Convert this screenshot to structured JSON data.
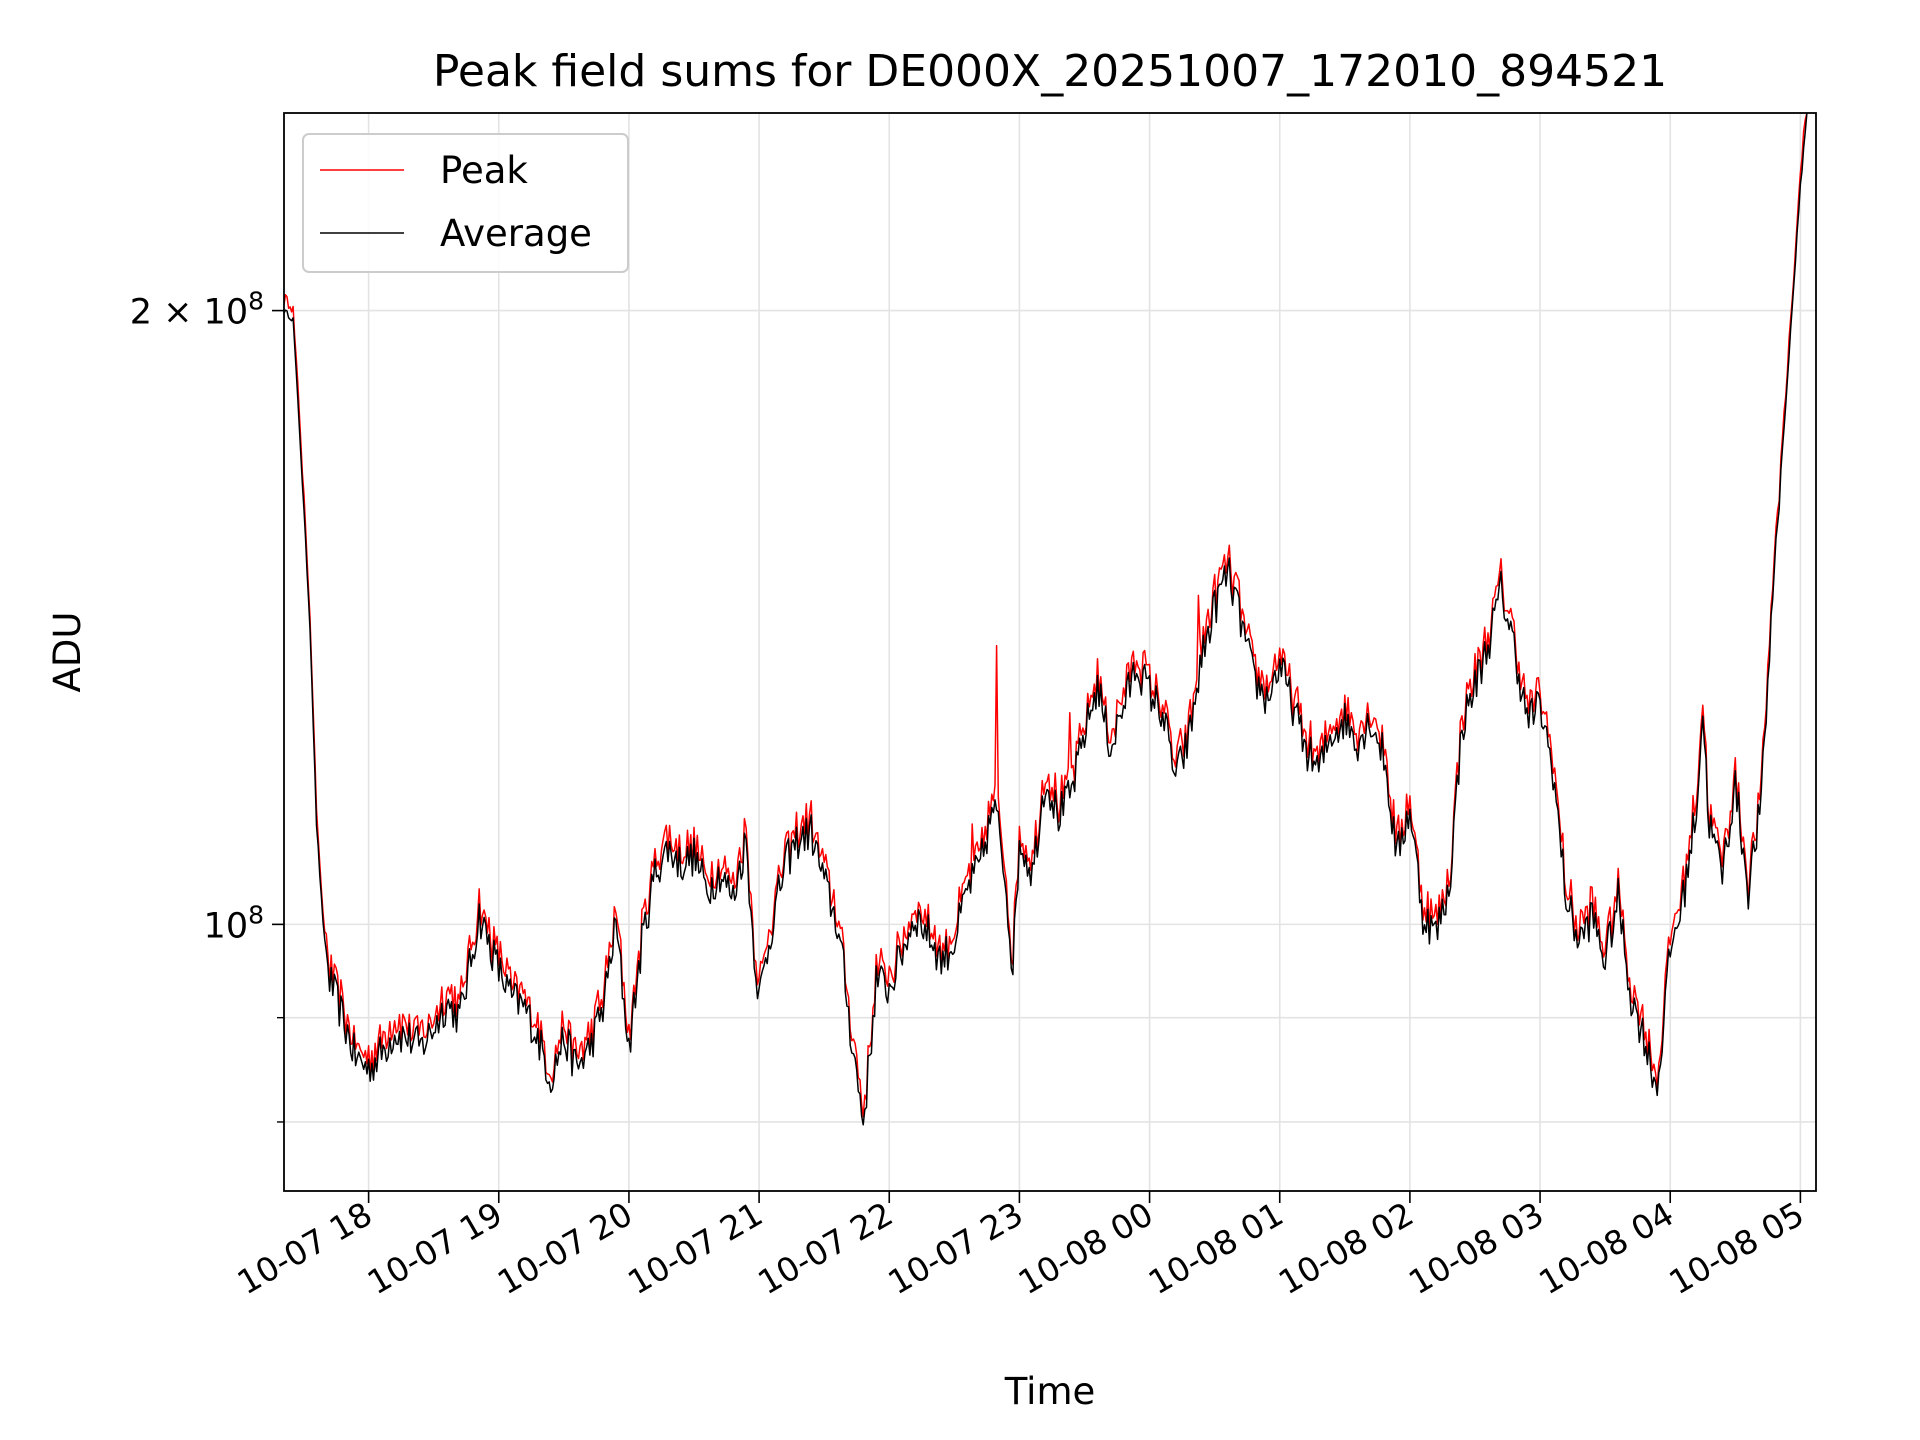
{
  "chart_data": {
    "type": "line",
    "title": "Peak field sums for DE000X_20251007_172010_894521",
    "xlabel": "Time",
    "ylabel": "ADU",
    "yscale": "log",
    "ylim": [
      74000000,
      250000000
    ],
    "xlim_hours": [
      17.35,
      29.12
    ],
    "grid": true,
    "legend_position": "upper-left",
    "x_ticks": [
      {
        "h": 18,
        "label": "10-07 18"
      },
      {
        "h": 19,
        "label": "10-07 19"
      },
      {
        "h": 20,
        "label": "10-07 20"
      },
      {
        "h": 21,
        "label": "10-07 21"
      },
      {
        "h": 22,
        "label": "10-07 22"
      },
      {
        "h": 23,
        "label": "10-07 23"
      },
      {
        "h": 24,
        "label": "10-08 00"
      },
      {
        "h": 25,
        "label": "10-08 01"
      },
      {
        "h": 26,
        "label": "10-08 02"
      },
      {
        "h": 27,
        "label": "10-08 03"
      },
      {
        "h": 28,
        "label": "10-08 04"
      },
      {
        "h": 29,
        "label": "10-08 05"
      }
    ],
    "y_major_ticks": [
      {
        "v": 100000000,
        "base": "10",
        "exp": "8"
      },
      {
        "v": 200000000,
        "base": "2 × 10",
        "exp": "8"
      }
    ],
    "y_minor_ticks": [
      80000000,
      90000000
    ],
    "series": [
      {
        "name": "Peak",
        "color": "#ff0000"
      },
      {
        "name": "Average",
        "color": "#000000"
      }
    ],
    "average_keypoints": [
      [
        17.35,
        200000000
      ],
      [
        17.42,
        198000000
      ],
      [
        17.48,
        170000000
      ],
      [
        17.55,
        140000000
      ],
      [
        17.6,
        112000000
      ],
      [
        17.65,
        100000000
      ],
      [
        17.7,
        94000000
      ],
      [
        17.8,
        90000000
      ],
      [
        17.9,
        86000000
      ],
      [
        18.0,
        85000000
      ],
      [
        18.1,
        86500000
      ],
      [
        18.2,
        88500000
      ],
      [
        18.3,
        88000000
      ],
      [
        18.4,
        87000000
      ],
      [
        18.5,
        89000000
      ],
      [
        18.6,
        91500000
      ],
      [
        18.7,
        90000000
      ],
      [
        18.8,
        97000000
      ],
      [
        18.85,
        101000000
      ],
      [
        18.9,
        99000000
      ],
      [
        19.0,
        95000000
      ],
      [
        19.1,
        92000000
      ],
      [
        19.2,
        91000000
      ],
      [
        19.3,
        88000000
      ],
      [
        19.4,
        84000000
      ],
      [
        19.45,
        86000000
      ],
      [
        19.5,
        88000000
      ],
      [
        19.6,
        85000000
      ],
      [
        19.7,
        87000000
      ],
      [
        19.8,
        91000000
      ],
      [
        19.9,
        100000000
      ],
      [
        20.0,
        87000000
      ],
      [
        20.1,
        98000000
      ],
      [
        20.2,
        106000000
      ],
      [
        20.3,
        109000000
      ],
      [
        20.4,
        107000000
      ],
      [
        20.5,
        108000000
      ],
      [
        20.6,
        104000000
      ],
      [
        20.7,
        106000000
      ],
      [
        20.8,
        103000000
      ],
      [
        20.9,
        110000000
      ],
      [
        20.95,
        99000000
      ],
      [
        21.0,
        92000000
      ],
      [
        21.1,
        100000000
      ],
      [
        21.2,
        107000000
      ],
      [
        21.3,
        110000000
      ],
      [
        21.4,
        111000000
      ],
      [
        21.5,
        105000000
      ],
      [
        21.6,
        100000000
      ],
      [
        21.65,
        95000000
      ],
      [
        21.7,
        89000000
      ],
      [
        21.8,
        80000000
      ],
      [
        21.85,
        86000000
      ],
      [
        21.9,
        94000000
      ],
      [
        22.0,
        93000000
      ],
      [
        22.1,
        97000000
      ],
      [
        22.2,
        101000000
      ],
      [
        22.3,
        99000000
      ],
      [
        22.4,
        96000000
      ],
      [
        22.5,
        98000000
      ],
      [
        22.6,
        104000000
      ],
      [
        22.7,
        107000000
      ],
      [
        22.8,
        114000000
      ],
      [
        22.85,
        111000000
      ],
      [
        22.9,
        104000000
      ],
      [
        22.95,
        95000000
      ],
      [
        23.0,
        110000000
      ],
      [
        23.1,
        106000000
      ],
      [
        23.2,
        118000000
      ],
      [
        23.3,
        113000000
      ],
      [
        23.4,
        116000000
      ],
      [
        23.5,
        124000000
      ],
      [
        23.6,
        131000000
      ],
      [
        23.7,
        122000000
      ],
      [
        23.8,
        128000000
      ],
      [
        23.9,
        134000000
      ],
      [
        24.0,
        130000000
      ],
      [
        24.1,
        127000000
      ],
      [
        24.2,
        118000000
      ],
      [
        24.3,
        123000000
      ],
      [
        24.4,
        135000000
      ],
      [
        24.5,
        143000000
      ],
      [
        24.6,
        149000000
      ],
      [
        24.7,
        141000000
      ],
      [
        24.8,
        132000000
      ],
      [
        24.9,
        129000000
      ],
      [
        25.0,
        134000000
      ],
      [
        25.1,
        128000000
      ],
      [
        25.2,
        122000000
      ],
      [
        25.3,
        119000000
      ],
      [
        25.4,
        124000000
      ],
      [
        25.5,
        126000000
      ],
      [
        25.6,
        123000000
      ],
      [
        25.7,
        126000000
      ],
      [
        25.8,
        121000000
      ],
      [
        25.9,
        108000000
      ],
      [
        26.0,
        114000000
      ],
      [
        26.1,
        101000000
      ],
      [
        26.2,
        99000000
      ],
      [
        26.3,
        104000000
      ],
      [
        26.4,
        125000000
      ],
      [
        26.5,
        131000000
      ],
      [
        26.6,
        137000000
      ],
      [
        26.7,
        146000000
      ],
      [
        26.8,
        137000000
      ],
      [
        26.9,
        126000000
      ],
      [
        27.0,
        128000000
      ],
      [
        27.1,
        119000000
      ],
      [
        27.2,
        103000000
      ],
      [
        27.3,
        98000000
      ],
      [
        27.4,
        101000000
      ],
      [
        27.5,
        96000000
      ],
      [
        27.6,
        103000000
      ],
      [
        27.7,
        92000000
      ],
      [
        27.8,
        88000000
      ],
      [
        27.9,
        83000000
      ],
      [
        28.0,
        97000000
      ],
      [
        28.1,
        103000000
      ],
      [
        28.2,
        114000000
      ],
      [
        28.25,
        127000000
      ],
      [
        28.3,
        112000000
      ],
      [
        28.4,
        106000000
      ],
      [
        28.5,
        117000000
      ],
      [
        28.6,
        104000000
      ],
      [
        28.7,
        115000000
      ],
      [
        28.8,
        150000000
      ],
      [
        28.9,
        185000000
      ],
      [
        29.0,
        230000000
      ],
      [
        29.05,
        250000000
      ]
    ],
    "peak_spikes": [
      {
        "h": 22.82,
        "v": 137000000
      },
      {
        "h": 23.39,
        "v": 127000000
      },
      {
        "h": 24.38,
        "v": 145000000
      },
      {
        "h": 22.64,
        "v": 112000000
      }
    ]
  }
}
